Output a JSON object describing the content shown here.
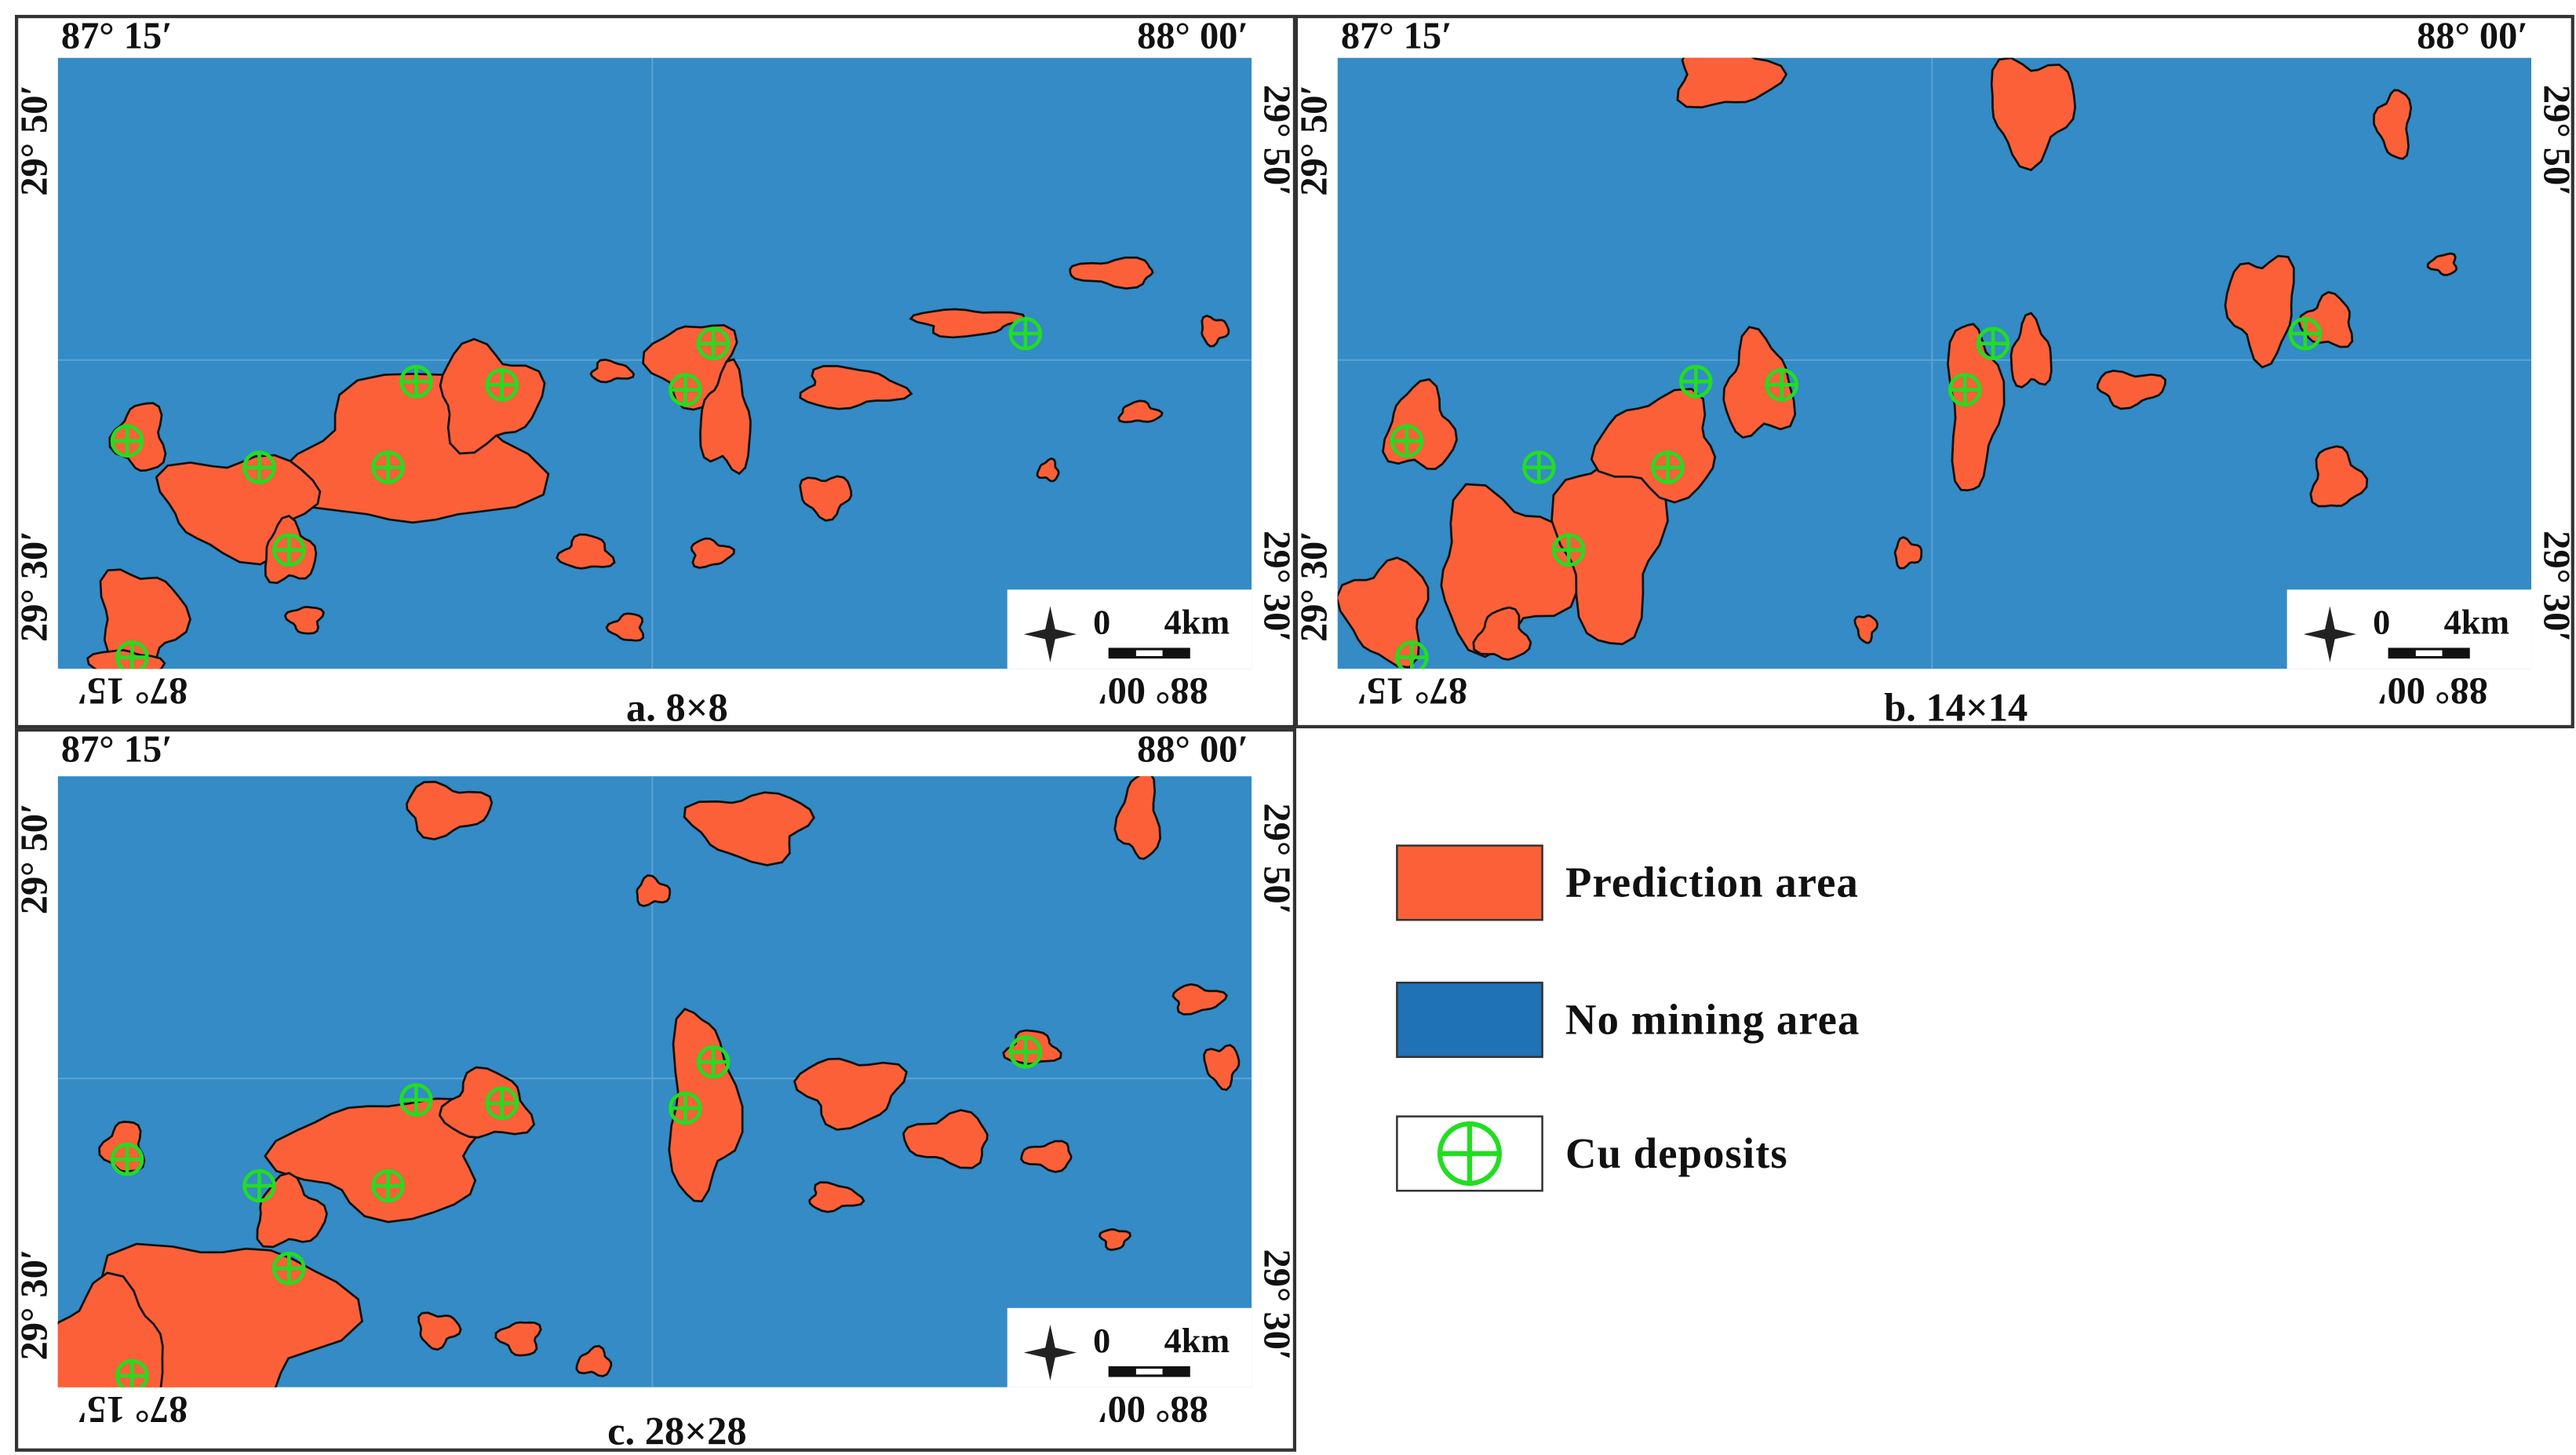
{
  "panels": [
    {
      "caption": "a. 8×8",
      "lon_west": "87° 15′",
      "lon_east": "88° 00′",
      "lat_north": "29° 50′",
      "lat_south": "29° 30′",
      "scale_zero": "0",
      "scale_length": "4km"
    },
    {
      "caption": "b. 14×14",
      "lon_west": "87° 15′",
      "lon_east": "88° 00′",
      "lat_north": "29° 50′",
      "lat_south": "29° 30′",
      "scale_zero": "0",
      "scale_length": "4km"
    },
    {
      "caption": "c. 28×28",
      "lon_west": "87° 15′",
      "lon_east": "88° 00′",
      "lat_north": "29° 50′",
      "lat_south": "29° 30′",
      "scale_zero": "0",
      "scale_length": "4km"
    }
  ],
  "legend": [
    {
      "label": "Prediction area",
      "color": "#fc6038"
    },
    {
      "label": "No mining area",
      "color": "#1f72b5"
    },
    {
      "label": "Cu deposits",
      "color": "#22dd22"
    }
  ]
}
